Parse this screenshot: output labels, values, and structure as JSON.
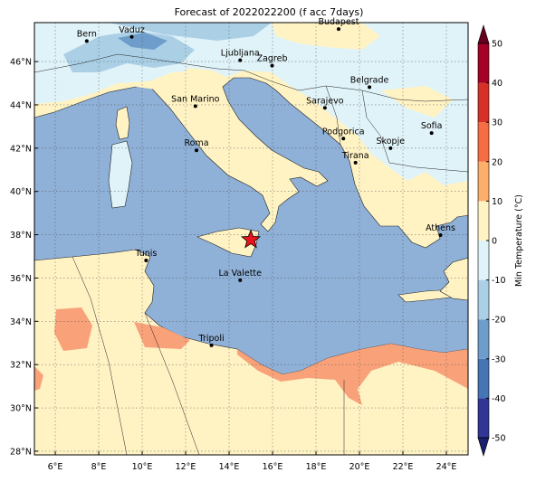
{
  "title": "Forecast of 2022022200 (f acc 7days)",
  "map": {
    "xlim": [
      5.04,
      25
    ],
    "ylim": [
      27.83,
      47.8
    ],
    "xticks": [
      {
        "value": 6,
        "label": "6°E"
      },
      {
        "value": 8,
        "label": "8°E"
      },
      {
        "value": 10,
        "label": "10°E"
      },
      {
        "value": 12,
        "label": "12°E"
      },
      {
        "value": 14,
        "label": "14°E"
      },
      {
        "value": 16,
        "label": "16°E"
      },
      {
        "value": 18,
        "label": "18°E"
      },
      {
        "value": 20,
        "label": "20°E"
      },
      {
        "value": 22,
        "label": "22°E"
      },
      {
        "value": 24,
        "label": "24°E"
      }
    ],
    "yticks": [
      {
        "value": 28,
        "label": "28°N"
      },
      {
        "value": 30,
        "label": "30°N"
      },
      {
        "value": 32,
        "label": "32°N"
      },
      {
        "value": 34,
        "label": "34°N"
      },
      {
        "value": 36,
        "label": "36°N"
      },
      {
        "value": 38,
        "label": "38°N"
      },
      {
        "value": 40,
        "label": "40°N"
      },
      {
        "value": 42,
        "label": "42°N"
      },
      {
        "value": 44,
        "label": "44°N"
      },
      {
        "value": 46,
        "label": "46°N"
      }
    ],
    "cities": [
      {
        "name": "Bern",
        "lon": 7.45,
        "lat": 46.95
      },
      {
        "name": "Vaduz",
        "lon": 9.52,
        "lat": 47.14
      },
      {
        "name": "Budapest",
        "lon": 19.04,
        "lat": 47.5
      },
      {
        "name": "Ljubljana",
        "lon": 14.51,
        "lat": 46.06
      },
      {
        "name": "Zagreb",
        "lon": 15.98,
        "lat": 45.81
      },
      {
        "name": "Belgrade",
        "lon": 20.46,
        "lat": 44.82
      },
      {
        "name": "San Marino",
        "lon": 12.45,
        "lat": 43.94
      },
      {
        "name": "Sarajevo",
        "lon": 18.41,
        "lat": 43.86
      },
      {
        "name": "Podgorica",
        "lon": 19.26,
        "lat": 42.44
      },
      {
        "name": "Skopje",
        "lon": 21.43,
        "lat": 42.0
      },
      {
        "name": "Sofia",
        "lon": 23.32,
        "lat": 42.7
      },
      {
        "name": "Roma",
        "lon": 12.5,
        "lat": 41.9
      },
      {
        "name": "Tirana",
        "lon": 19.82,
        "lat": 41.33
      },
      {
        "name": "Athens",
        "lon": 23.73,
        "lat": 37.98
      },
      {
        "name": "Tunis",
        "lon": 10.18,
        "lat": 36.81
      },
      {
        "name": "La Valette",
        "lon": 14.51,
        "lat": 35.9
      },
      {
        "name": "Tripoli",
        "lon": 13.19,
        "lat": 32.89
      }
    ],
    "marker": {
      "lon": 15.0,
      "lat": 37.77,
      "color": "#e8141c"
    }
  },
  "colorbar": {
    "label": "Min Temperature (°C)",
    "ticks": [
      -50,
      -40,
      -30,
      -20,
      -10,
      0,
      10,
      20,
      30,
      40,
      50
    ],
    "colors": [
      "#313695",
      "#4575b4",
      "#6f9dcb",
      "#abd0e6",
      "#e0f3f8",
      "#fff3c4",
      "#fdae6b",
      "#f46d43",
      "#d73027",
      "#a50026"
    ],
    "under": "#1c1f6b",
    "over": "#67001f"
  }
}
